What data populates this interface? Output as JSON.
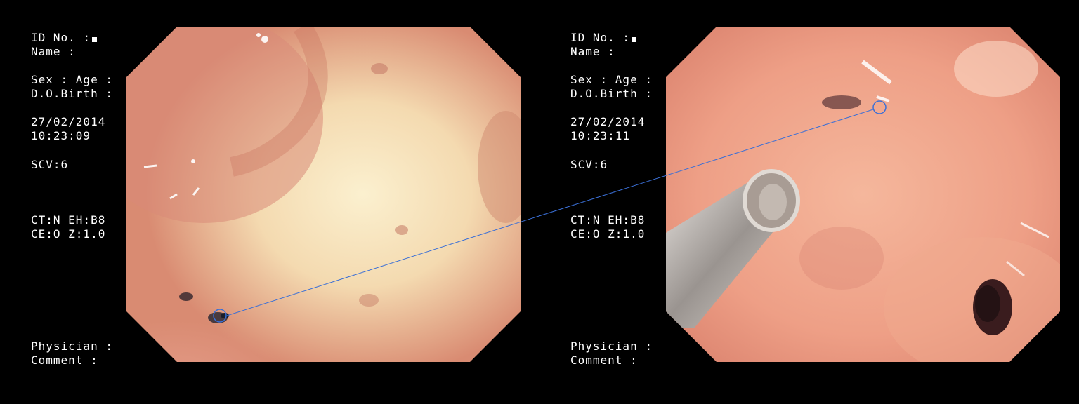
{
  "panels": [
    {
      "id_label": "ID No. :",
      "name_label": "Name :",
      "sex_age_label": "Sex : Age :",
      "dob_label": "D.O.Birth :",
      "date": "27/02/2014",
      "time": "10:23:09",
      "scv": "SCV:6",
      "ct_eh": "CT:N EH:B8",
      "ce_z": "CE:O Z:1.0",
      "physician_label": "Physician :",
      "comment_label": "Comment :"
    },
    {
      "id_label": "ID No. :",
      "name_label": "Name :",
      "sex_age_label": "Sex : Age :",
      "dob_label": "D.O.Birth :",
      "date": "27/02/2014",
      "time": "10:23:11",
      "scv": "SCV:6",
      "ct_eh": "CT:N EH:B8",
      "ce_z": "CE:O Z:1.0",
      "physician_label": "Physician :",
      "comment_label": "Comment :"
    }
  ],
  "colors": {
    "background": "#000000",
    "text": "#ffffff",
    "marker_line": "#3a6fd6"
  }
}
